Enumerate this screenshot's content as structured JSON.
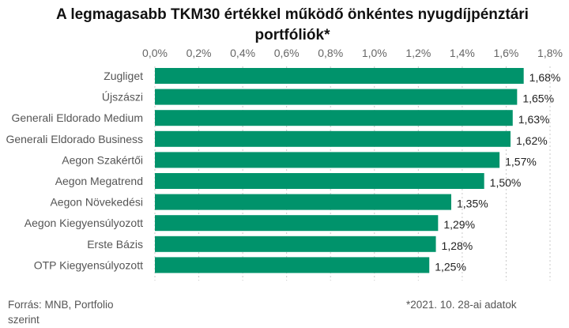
{
  "chart_data": {
    "type": "bar",
    "orientation": "horizontal",
    "title_line1": "A legmagasabb TKM30 értékkel működő önkéntes nyugdíjpénztári",
    "title_line2": "portfóliók*",
    "categories": [
      "Zugliget",
      "Újszászi",
      "Generali Eldorado Medium",
      "Generali Eldorado Business",
      "Aegon Szakértői",
      "Aegon Megatrend",
      "Aegon Növekedési",
      "Aegon Kiegyensúlyozott",
      "Erste Bázis",
      "OTP Kiegyensúlyozott"
    ],
    "values": [
      1.68,
      1.65,
      1.63,
      1.62,
      1.57,
      1.5,
      1.35,
      1.29,
      1.28,
      1.25
    ],
    "value_labels": [
      "1,68%",
      "1,65%",
      "1,63%",
      "1,62%",
      "1,57%",
      "1,50%",
      "1,35%",
      "1,29%",
      "1,28%",
      "1,25%"
    ],
    "xlim": [
      0,
      1.8
    ],
    "ticks": [
      0,
      0.2,
      0.4,
      0.6,
      0.8,
      1.0,
      1.2,
      1.4,
      1.6,
      1.8
    ],
    "tick_labels": [
      "0,0%",
      "0,2%",
      "0,4%",
      "0,6%",
      "0,8%",
      "1,0%",
      "1,2%",
      "1,4%",
      "1,6%",
      "1,8%"
    ],
    "axis_position": "top",
    "grid": true,
    "bar_color": "#00936b"
  },
  "footer": {
    "source": "Forrás: MNB, Portfolio szerint",
    "note": "*2021. 10. 28-ai adatok"
  }
}
